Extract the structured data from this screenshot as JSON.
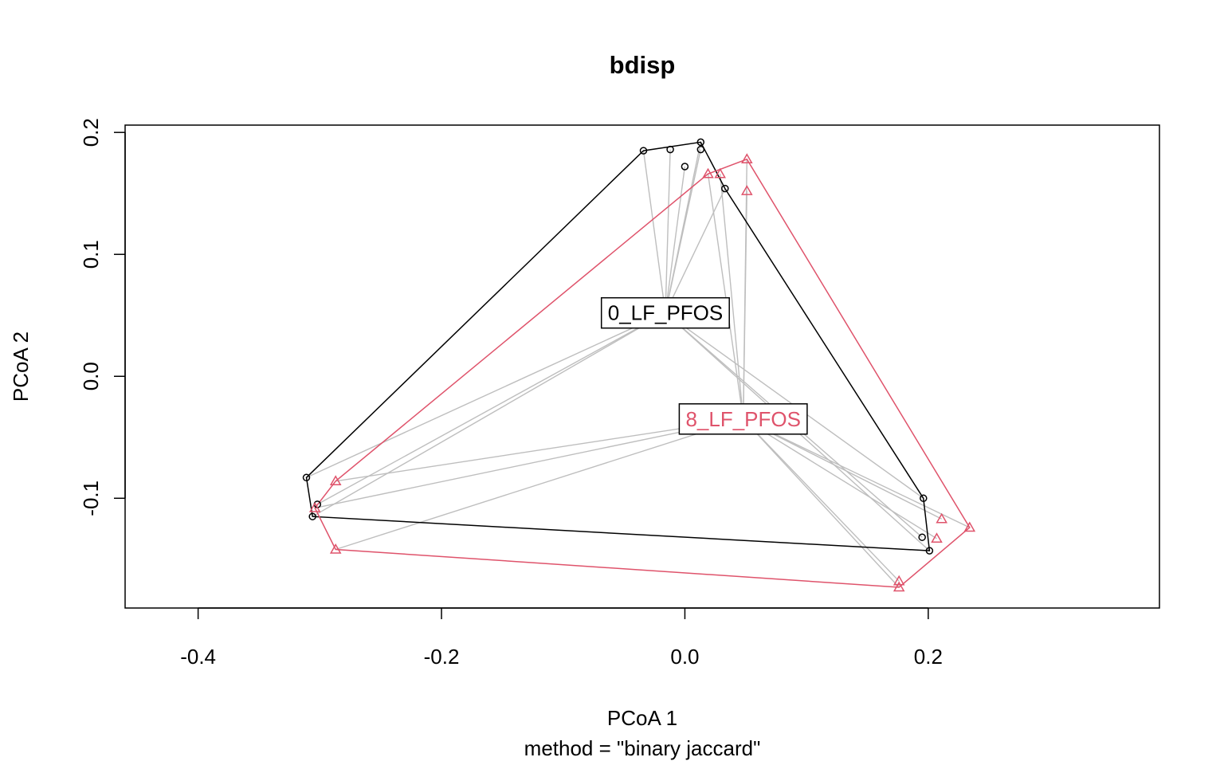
{
  "chart_data": {
    "type": "scatter",
    "title": "bdisp",
    "xlabel": "PCoA 1",
    "ylabel": "PCoA 2",
    "subtitle": "method = \"binary jaccard\"",
    "xlim": [
      -0.46,
      0.39
    ],
    "ylim": [
      -0.19,
      0.206
    ],
    "xticks": [
      -0.4,
      -0.2,
      0.0,
      0.2
    ],
    "yticks": [
      -0.1,
      0.0,
      0.1,
      0.2
    ],
    "xtick_labels": [
      "-0.4",
      "-0.2",
      "0.0",
      "0.2"
    ],
    "ytick_labels": [
      "-0.1",
      "0.0",
      "0.1",
      "0.2"
    ],
    "segment_color": "#BEBEBE",
    "series": [
      {
        "name": "0_LF_PFOS",
        "color": "#000000",
        "marker": "circle",
        "centroid": [
          -0.016,
          0.052
        ],
        "points": [
          [
            -0.311,
            -0.083
          ],
          [
            -0.302,
            -0.105
          ],
          [
            -0.306,
            -0.115
          ],
          [
            -0.034,
            0.185
          ],
          [
            -0.012,
            0.186
          ],
          [
            0.013,
            0.192
          ],
          [
            0.013,
            0.186
          ],
          [
            0.0,
            0.172
          ],
          [
            0.033,
            0.154
          ],
          [
            0.196,
            -0.1
          ],
          [
            0.195,
            -0.132
          ],
          [
            0.201,
            -0.143
          ]
        ],
        "hull": [
          [
            -0.306,
            -0.115
          ],
          [
            -0.311,
            -0.083
          ],
          [
            -0.034,
            0.185
          ],
          [
            0.013,
            0.192
          ],
          [
            0.033,
            0.154
          ],
          [
            0.196,
            -0.1
          ],
          [
            0.201,
            -0.143
          ]
        ]
      },
      {
        "name": "8_LF_PFOS",
        "color": "#DF536B",
        "marker": "triangle",
        "centroid": [
          0.048,
          -0.035
        ],
        "points": [
          [
            -0.287,
            -0.086
          ],
          [
            -0.304,
            -0.108
          ],
          [
            -0.287,
            -0.142
          ],
          [
            0.019,
            0.166
          ],
          [
            0.029,
            0.166
          ],
          [
            0.051,
            0.178
          ],
          [
            0.051,
            0.152
          ],
          [
            0.211,
            -0.117
          ],
          [
            0.207,
            -0.133
          ],
          [
            0.234,
            -0.124
          ],
          [
            0.176,
            -0.168
          ],
          [
            0.176,
            -0.173
          ]
        ],
        "hull": [
          [
            -0.287,
            -0.142
          ],
          [
            -0.304,
            -0.108
          ],
          [
            -0.287,
            -0.086
          ],
          [
            0.019,
            0.166
          ],
          [
            0.051,
            0.178
          ],
          [
            0.234,
            -0.124
          ],
          [
            0.176,
            -0.173
          ]
        ]
      }
    ]
  }
}
